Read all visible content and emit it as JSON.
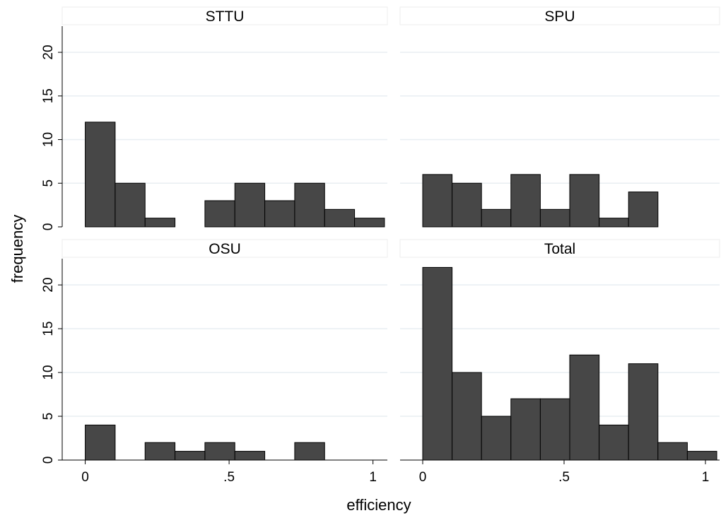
{
  "chart_data": {
    "type": "bar",
    "xlabel": "efficiency",
    "ylabel": "frequency",
    "xlim": [
      -0.08,
      1.05
    ],
    "ylim": [
      0,
      23
    ],
    "x_ticks": [
      {
        "value": 0,
        "label": "0"
      },
      {
        "value": 0.5,
        "label": ".5"
      },
      {
        "value": 1,
        "label": "1"
      }
    ],
    "y_ticks": [
      {
        "value": 0,
        "label": "0"
      },
      {
        "value": 5,
        "label": "5"
      },
      {
        "value": 10,
        "label": "10"
      },
      {
        "value": 15,
        "label": "15"
      },
      {
        "value": 20,
        "label": "20"
      }
    ],
    "grid": true,
    "bar_color": "#474747",
    "panels": [
      {
        "title": "STTU",
        "bins": [
          {
            "start": 0.0,
            "end": 0.104,
            "count": 12
          },
          {
            "start": 0.104,
            "end": 0.208,
            "count": 5
          },
          {
            "start": 0.208,
            "end": 0.312,
            "count": 1
          },
          {
            "start": 0.416,
            "end": 0.52,
            "count": 3
          },
          {
            "start": 0.52,
            "end": 0.624,
            "count": 5
          },
          {
            "start": 0.624,
            "end": 0.728,
            "count": 3
          },
          {
            "start": 0.728,
            "end": 0.832,
            "count": 5
          },
          {
            "start": 0.832,
            "end": 0.936,
            "count": 2
          },
          {
            "start": 0.936,
            "end": 1.04,
            "count": 1
          }
        ]
      },
      {
        "title": "SPU",
        "bins": [
          {
            "start": 0.0,
            "end": 0.104,
            "count": 6
          },
          {
            "start": 0.104,
            "end": 0.208,
            "count": 5
          },
          {
            "start": 0.208,
            "end": 0.312,
            "count": 2
          },
          {
            "start": 0.312,
            "end": 0.416,
            "count": 6
          },
          {
            "start": 0.416,
            "end": 0.52,
            "count": 2
          },
          {
            "start": 0.52,
            "end": 0.624,
            "count": 6
          },
          {
            "start": 0.624,
            "end": 0.728,
            "count": 1
          },
          {
            "start": 0.728,
            "end": 0.832,
            "count": 4
          }
        ]
      },
      {
        "title": "OSU",
        "bins": [
          {
            "start": 0.0,
            "end": 0.104,
            "count": 4
          },
          {
            "start": 0.208,
            "end": 0.312,
            "count": 2
          },
          {
            "start": 0.312,
            "end": 0.416,
            "count": 1
          },
          {
            "start": 0.416,
            "end": 0.52,
            "count": 2
          },
          {
            "start": 0.52,
            "end": 0.624,
            "count": 1
          },
          {
            "start": 0.728,
            "end": 0.832,
            "count": 2
          }
        ]
      },
      {
        "title": "Total",
        "bins": [
          {
            "start": 0.0,
            "end": 0.104,
            "count": 22
          },
          {
            "start": 0.104,
            "end": 0.208,
            "count": 10
          },
          {
            "start": 0.208,
            "end": 0.312,
            "count": 5
          },
          {
            "start": 0.312,
            "end": 0.416,
            "count": 7
          },
          {
            "start": 0.416,
            "end": 0.52,
            "count": 7
          },
          {
            "start": 0.52,
            "end": 0.624,
            "count": 12
          },
          {
            "start": 0.624,
            "end": 0.728,
            "count": 4
          },
          {
            "start": 0.728,
            "end": 0.832,
            "count": 11
          },
          {
            "start": 0.832,
            "end": 0.936,
            "count": 2
          },
          {
            "start": 0.936,
            "end": 1.04,
            "count": 1
          }
        ]
      }
    ]
  }
}
